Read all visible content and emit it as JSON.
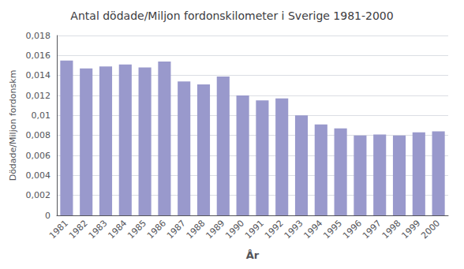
{
  "chart_data": {
    "type": "bar",
    "title": "Antal dödade/Miljon fordonskilometer i Sverige 1981-2000",
    "xlabel": "År",
    "ylabel": "Dödade/Miljon fordonskm",
    "categories": [
      "1981",
      "1982",
      "1983",
      "1984",
      "1985",
      "1986",
      "1987",
      "1988",
      "1989",
      "1990",
      "1991",
      "1992",
      "1993",
      "1994",
      "1995",
      "1996",
      "1997",
      "1998",
      "1999",
      "2000"
    ],
    "values": [
      0.0155,
      0.0147,
      0.0149,
      0.0151,
      0.0148,
      0.0154,
      0.0134,
      0.0131,
      0.0139,
      0.012,
      0.0115,
      0.0117,
      0.01,
      0.0091,
      0.0087,
      0.008,
      0.0081,
      0.008,
      0.0083,
      0.0084
    ],
    "color": "#9999CC",
    "ylim": [
      0,
      0.018
    ],
    "yticks": [
      0,
      {
        "value": 0.002,
        "label": "0,002"
      },
      {
        "value": 0.004,
        "label": "0,004"
      },
      {
        "value": 0.006,
        "label": "0,006"
      },
      {
        "value": 0.008,
        "label": "0,008"
      },
      {
        "value": 0.01,
        "label": "0,01"
      },
      {
        "value": 0.012,
        "label": "0,012"
      },
      {
        "value": 0.014,
        "label": "0,014"
      },
      {
        "value": 0.016,
        "label": "0,016"
      },
      {
        "value": 0.018,
        "label": "0,018"
      }
    ],
    "grid": true
  }
}
